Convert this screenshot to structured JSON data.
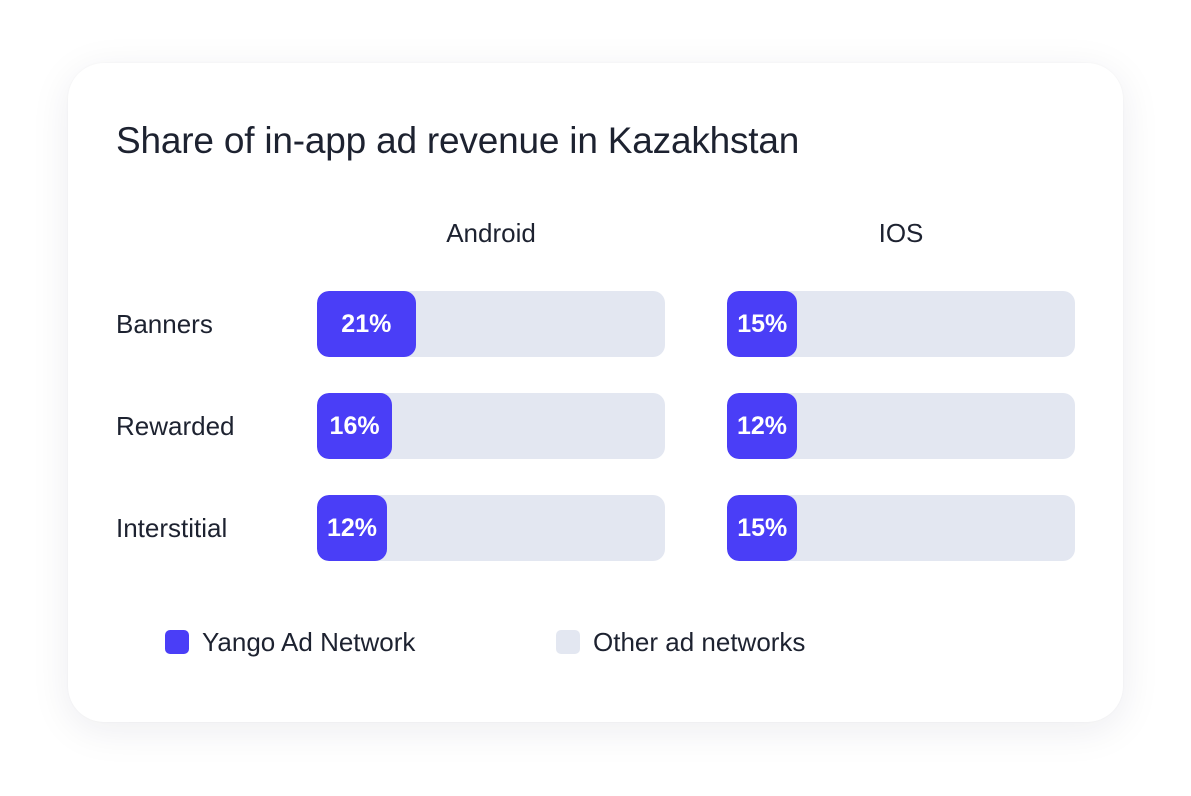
{
  "colors": {
    "primary": "#4a3ef7",
    "track": "#e3e7f1",
    "text": "#1d2230"
  },
  "chart_data": {
    "type": "bar",
    "title": "Share of in-app ad revenue in Kazakhstan",
    "categories": [
      "Banners",
      "Rewarded",
      "Interstitial"
    ],
    "panels": [
      {
        "name": "Android",
        "values": [
          21,
          16,
          12
        ],
        "labels": [
          "21%",
          "16%",
          "12%"
        ]
      },
      {
        "name": "IOS",
        "values": [
          15,
          12,
          15
        ],
        "labels": [
          "15%",
          "12%",
          "15%"
        ]
      }
    ],
    "ylim": [
      0,
      100
    ],
    "unit": "%",
    "legend": [
      {
        "name": "Yango Ad Network",
        "color": "#4a3ef7"
      },
      {
        "name": "Other ad networks",
        "color": "#e3e7f1"
      }
    ],
    "legend_position": "bottom"
  }
}
